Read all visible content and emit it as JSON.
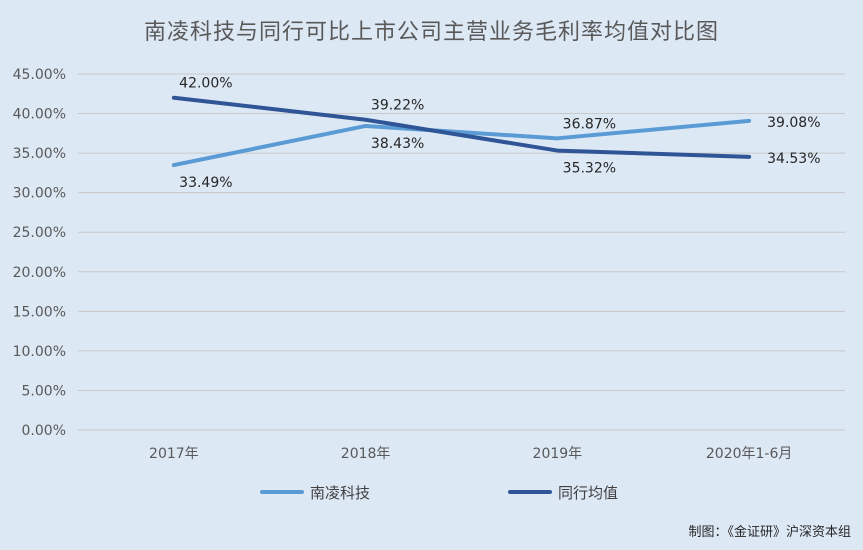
{
  "chart_data": {
    "type": "line",
    "title": "南凌科技与同行可比上市公司主营业务毛利率均值对比图",
    "categories": [
      "2017年",
      "2018年",
      "2019年",
      "2020年1-6月"
    ],
    "series": [
      {
        "name": "南凌科技",
        "values": [
          33.49,
          38.43,
          36.87,
          39.08
        ],
        "labels": [
          "33.49%",
          "38.43%",
          "36.87%",
          "39.08%"
        ],
        "color": "#5b9bd5"
      },
      {
        "name": "同行均值",
        "values": [
          42.0,
          39.22,
          35.32,
          34.53
        ],
        "labels": [
          "42.00%",
          "39.22%",
          "35.32%",
          "34.53%"
        ],
        "color": "#2f5597"
      }
    ],
    "ylim": [
      0,
      45
    ],
    "yticks": [
      "0.00%",
      "5.00%",
      "10.00%",
      "15.00%",
      "20.00%",
      "25.00%",
      "30.00%",
      "35.00%",
      "40.00%",
      "45.00%"
    ],
    "grid": true,
    "legend_position": "bottom",
    "xlabel": "",
    "ylabel": ""
  },
  "credit": "制图：《金证研》沪深资本组"
}
